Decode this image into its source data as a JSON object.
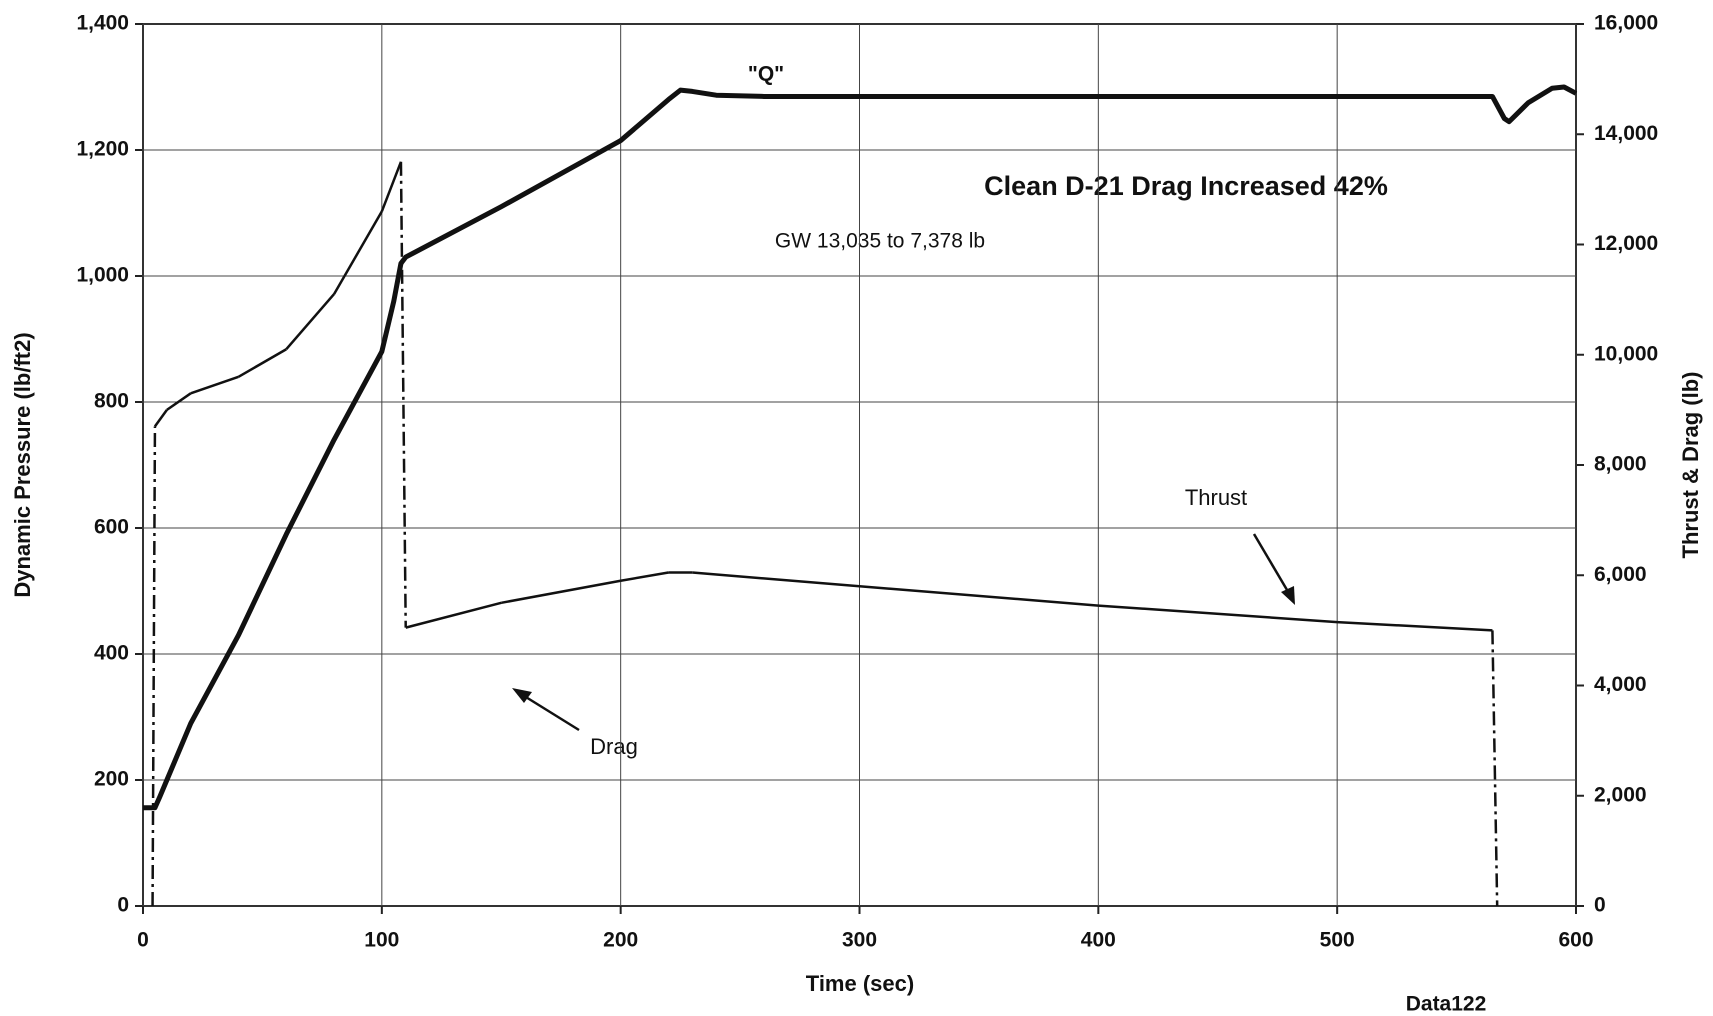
{
  "chart_data": {
    "type": "line",
    "xlabel": "Time (sec)",
    "ylabel": "Dynamic Pressure (lb/ft2)",
    "y2label": "Thrust & Drag (lb)",
    "xlim": [
      0,
      600
    ],
    "xticks": [
      0,
      100,
      200,
      300,
      400,
      500,
      600
    ],
    "ylim": [
      0,
      1400
    ],
    "yticks": [
      0,
      200,
      400,
      600,
      800,
      {
        "value": 1000,
        "label": "1,000"
      },
      {
        "value": 1200,
        "label": "1,200"
      },
      {
        "value": 1400,
        "label": "1,400"
      }
    ],
    "y2lim": [
      0,
      16000
    ],
    "y2ticks": [
      0,
      {
        "value": 2000,
        "label": "2,000"
      },
      {
        "value": 4000,
        "label": "4,000"
      },
      {
        "value": 6000,
        "label": "6,000"
      },
      {
        "value": 8000,
        "label": "8,000"
      },
      {
        "value": 10000,
        "label": "10,000"
      },
      {
        "value": 12000,
        "label": "12,000"
      },
      {
        "value": 14000,
        "label": "14,000"
      },
      {
        "value": 16000,
        "label": "16,000"
      }
    ],
    "grid": true,
    "series": [
      {
        "name": "\"Q\"",
        "color": "#111111",
        "x": [
          0,
          5,
          7,
          10,
          20,
          40,
          60,
          80,
          100,
          105,
          108,
          110,
          150,
          200,
          220,
          225,
          230,
          240,
          260,
          300,
          400,
          500,
          565,
          570,
          572,
          580,
          590,
          595,
          600
        ],
        "values": [
          156,
          156,
          173,
          200,
          290,
          430,
          590,
          740,
          880,
          960,
          1020,
          1030,
          1110,
          1215,
          1280,
          1295,
          1293,
          1287,
          1285,
          1285,
          1285,
          1285,
          1285,
          1250,
          1245,
          1275,
          1298,
          1300,
          1290
        ]
      },
      {
        "name": "Thrust",
        "color": "#111111",
        "axis": "y2",
        "x": [
          4,
          5,
          10,
          20,
          40,
          60,
          80,
          100,
          108,
          110,
          150,
          200,
          220,
          230,
          300,
          400,
          500,
          565,
          567
        ],
        "values": [
          0,
          8700,
          9000,
          9300,
          9600,
          10100,
          11100,
          12600,
          13500,
          5050,
          5500,
          5900,
          6050,
          6050,
          5800,
          5450,
          5150,
          5000,
          0
        ]
      }
    ],
    "annotations": [
      "Clean D-21 Drag Increased 42%",
      "GW 13,035 to 7,378 lb",
      "Drag"
    ],
    "footnote": "Data122"
  }
}
